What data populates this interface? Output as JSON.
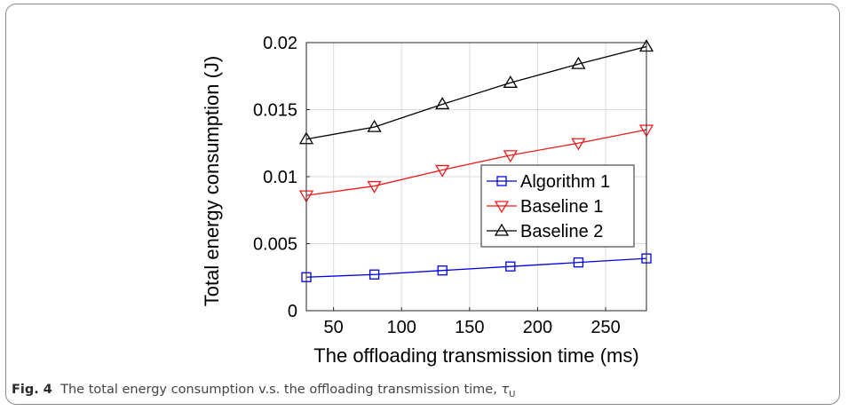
{
  "chart_data": {
    "type": "line",
    "xlabel": "The offloading transmission time (ms)",
    "ylabel": "Total energy consumption (J)",
    "xlim": [
      30,
      280
    ],
    "ylim": [
      0,
      0.02
    ],
    "xticks": [
      50,
      100,
      150,
      200,
      250
    ],
    "xtick_labels": [
      "50",
      "100",
      "150",
      "200",
      "250"
    ],
    "yticks": [
      0,
      0.005,
      0.01,
      0.015,
      0.02
    ],
    "ytick_labels": [
      "0",
      "0.005",
      "0.01",
      "0.015",
      "0.02"
    ],
    "grid": true,
    "legend_position": "center-right",
    "x": [
      30,
      80,
      130,
      180,
      230,
      280
    ],
    "series": [
      {
        "name": "Algorithm 1",
        "color": "#0000e6",
        "marker": "square",
        "values": [
          0.0025,
          0.0027,
          0.003,
          0.0033,
          0.0036,
          0.0039
        ]
      },
      {
        "name": "Baseline 1",
        "color": "#ee1c1c",
        "marker": "triangle-down",
        "values": [
          0.0086,
          0.0093,
          0.0105,
          0.0116,
          0.0125,
          0.0135
        ]
      },
      {
        "name": "Baseline 2",
        "color": "#000000",
        "marker": "triangle-up",
        "values": [
          0.0128,
          0.0137,
          0.0154,
          0.017,
          0.0184,
          0.0197
        ]
      }
    ]
  },
  "caption": {
    "label": "Fig. 4",
    "text": "The total energy consumption v.s. the offloading transmission time,",
    "symbol": "τ",
    "subscript": "U"
  }
}
